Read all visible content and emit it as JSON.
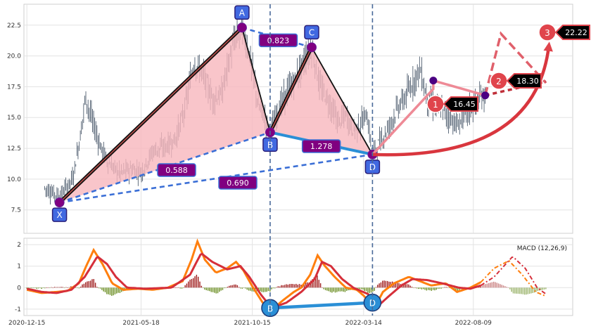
{
  "chart_data": {
    "type": "candlestick",
    "pattern": "XABCD harmonic",
    "colors": {
      "pattern_fill": "#f7b6bd",
      "leg_line": "#111111",
      "dash_line": "#3b6fd6",
      "ratio_box": "#800080",
      "point_box": "#4169e1",
      "projection": "#e0444c",
      "macd_orange": "#ff7f0e",
      "macd_red": "#d62f3a",
      "hist_pos": "#a01e1e",
      "hist_neg": "#6b8e23",
      "vline": "#4a6a9a"
    },
    "x_ticks": [
      {
        "label": "2020-12-15",
        "day": 0
      },
      {
        "label": "2021-05-18",
        "day": 154
      },
      {
        "label": "2021-10-15",
        "day": 304
      },
      {
        "label": "2022-03-14",
        "day": 454
      },
      {
        "label": "2022-08-09",
        "day": 602
      }
    ],
    "xlim": [
      -4,
      736
    ],
    "price": {
      "ylim": [
        5.6,
        24.2
      ],
      "y_ticks": [
        7.5,
        10.0,
        12.5,
        15.0,
        17.5,
        20.0,
        22.5
      ],
      "key_prices": [
        [
          24,
          9.3
        ],
        [
          34,
          8.9
        ],
        [
          44,
          8.6
        ],
        [
          52,
          9.2
        ],
        [
          62,
          10.1
        ],
        [
          72,
          13.5
        ],
        [
          79,
          16.7
        ],
        [
          88,
          14.8
        ],
        [
          100,
          12.5
        ],
        [
          112,
          11.2
        ],
        [
          125,
          10.5
        ],
        [
          140,
          10.8
        ],
        [
          155,
          10.6
        ],
        [
          170,
          12.3
        ],
        [
          185,
          12.6
        ],
        [
          200,
          13.2
        ],
        [
          212,
          15.5
        ],
        [
          225,
          19.4
        ],
        [
          238,
          18.5
        ],
        [
          250,
          16.5
        ],
        [
          262,
          16.8
        ],
        [
          272,
          19.5
        ],
        [
          282,
          21.6
        ],
        [
          290,
          22.2
        ],
        [
          300,
          20.2
        ],
        [
          312,
          16.0
        ],
        [
          320,
          15.0
        ],
        [
          328,
          13.8
        ],
        [
          340,
          15.8
        ],
        [
          352,
          17.2
        ],
        [
          365,
          18.4
        ],
        [
          375,
          19.8
        ],
        [
          384,
          20.7
        ],
        [
          395,
          17.5
        ],
        [
          408,
          16.2
        ],
        [
          420,
          14.6
        ],
        [
          430,
          15.2
        ],
        [
          440,
          14.0
        ],
        [
          450,
          14.4
        ],
        [
          458,
          15.3
        ],
        [
          466,
          12.1
        ],
        [
          476,
          13.0
        ],
        [
          488,
          14.2
        ],
        [
          500,
          15.8
        ],
        [
          510,
          16.6
        ],
        [
          520,
          17.8
        ],
        [
          530,
          19.0
        ],
        [
          540,
          16.4
        ],
        [
          550,
          16.0
        ],
        [
          560,
          15.7
        ],
        [
          570,
          15.0
        ],
        [
          580,
          14.3
        ],
        [
          590,
          15.2
        ],
        [
          602,
          15.9
        ],
        [
          612,
          16.6
        ],
        [
          618,
          16.8
        ]
      ],
      "points": [
        {
          "label": "X",
          "day": 44,
          "price": 8.1
        },
        {
          "label": "A",
          "day": 290,
          "price": 22.3
        },
        {
          "label": "B",
          "day": 328,
          "price": 13.8
        },
        {
          "label": "C",
          "day": 384,
          "price": 20.7
        },
        {
          "label": "D",
          "day": 466,
          "price": 12.0
        }
      ],
      "ratios": [
        {
          "label": "0.823",
          "between": "A-C"
        },
        {
          "label": "1.278",
          "between": "B-D"
        },
        {
          "label": "0.588",
          "between": "X-B"
        },
        {
          "label": "0.690",
          "between": "X-D"
        }
      ],
      "targets": [
        {
          "label": "1",
          "value": "16.45"
        },
        {
          "label": "2",
          "value": "18.30"
        },
        {
          "label": "3",
          "value": "22.22"
        }
      ],
      "projected_swings": [
        {
          "day": 548,
          "price": 18.0
        },
        {
          "day": 618,
          "price": 16.8
        }
      ]
    },
    "macd": {
      "label": "MACD (12,26,9)",
      "ylim": [
        -1.3,
        2.3
      ],
      "y_ticks": [
        -1,
        0,
        1,
        2
      ],
      "points": [
        {
          "label": "B",
          "day": 328,
          "value": -0.95
        },
        {
          "label": "D",
          "day": 466,
          "value": -0.7
        }
      ],
      "macd_key": [
        [
          0,
          -0.1
        ],
        [
          20,
          -0.25
        ],
        [
          40,
          -0.2
        ],
        [
          55,
          -0.15
        ],
        [
          70,
          0.2
        ],
        [
          80,
          1.0
        ],
        [
          90,
          1.75
        ],
        [
          102,
          1.1
        ],
        [
          115,
          0.2
        ],
        [
          130,
          -0.1
        ],
        [
          150,
          -0.05
        ],
        [
          170,
          -0.1
        ],
        [
          190,
          0.0
        ],
        [
          210,
          0.3
        ],
        [
          222,
          1.3
        ],
        [
          230,
          2.15
        ],
        [
          240,
          1.3
        ],
        [
          255,
          0.7
        ],
        [
          270,
          0.9
        ],
        [
          282,
          1.2
        ],
        [
          292,
          0.8
        ],
        [
          305,
          0.0
        ],
        [
          318,
          -0.7
        ],
        [
          328,
          -1.1
        ],
        [
          345,
          -0.6
        ],
        [
          360,
          -0.2
        ],
        [
          370,
          0.0
        ],
        [
          382,
          0.6
        ],
        [
          392,
          1.5
        ],
        [
          402,
          1.0
        ],
        [
          415,
          0.5
        ],
        [
          430,
          0.0
        ],
        [
          445,
          -0.1
        ],
        [
          455,
          -0.4
        ],
        [
          468,
          -1.0
        ],
        [
          480,
          -0.2
        ],
        [
          495,
          0.2
        ],
        [
          515,
          0.5
        ],
        [
          530,
          0.3
        ],
        [
          545,
          0.1
        ],
        [
          565,
          0.2
        ],
        [
          580,
          -0.2
        ],
        [
          598,
          0.0
        ],
        [
          612,
          0.25
        ]
      ],
      "signal_key": [
        [
          0,
          -0.05
        ],
        [
          20,
          -0.2
        ],
        [
          40,
          -0.25
        ],
        [
          60,
          -0.1
        ],
        [
          78,
          0.5
        ],
        [
          95,
          1.45
        ],
        [
          108,
          1.1
        ],
        [
          120,
          0.5
        ],
        [
          135,
          0.0
        ],
        [
          160,
          -0.05
        ],
        [
          195,
          0.0
        ],
        [
          220,
          0.6
        ],
        [
          235,
          1.6
        ],
        [
          250,
          1.2
        ],
        [
          270,
          0.85
        ],
        [
          288,
          1.0
        ],
        [
          300,
          0.5
        ],
        [
          315,
          -0.3
        ],
        [
          330,
          -0.95
        ],
        [
          350,
          -0.7
        ],
        [
          370,
          -0.2
        ],
        [
          388,
          0.4
        ],
        [
          398,
          1.2
        ],
        [
          410,
          1.0
        ],
        [
          425,
          0.4
        ],
        [
          440,
          0.0
        ],
        [
          460,
          -0.3
        ],
        [
          472,
          -0.9
        ],
        [
          488,
          -0.4
        ],
        [
          505,
          0.1
        ],
        [
          520,
          0.4
        ],
        [
          540,
          0.35
        ],
        [
          560,
          0.2
        ],
        [
          582,
          0.0
        ],
        [
          598,
          -0.05
        ],
        [
          612,
          0.1
        ]
      ],
      "proj_macd_key": [
        [
          612,
          0.25
        ],
        [
          630,
          0.9
        ],
        [
          650,
          1.25
        ],
        [
          668,
          0.6
        ],
        [
          686,
          -0.2
        ],
        [
          700,
          -0.4
        ]
      ],
      "proj_signal_key": [
        [
          612,
          0.1
        ],
        [
          630,
          0.5
        ],
        [
          655,
          1.45
        ],
        [
          672,
          0.9
        ],
        [
          688,
          0.0
        ],
        [
          700,
          -0.3
        ]
      ]
    }
  }
}
